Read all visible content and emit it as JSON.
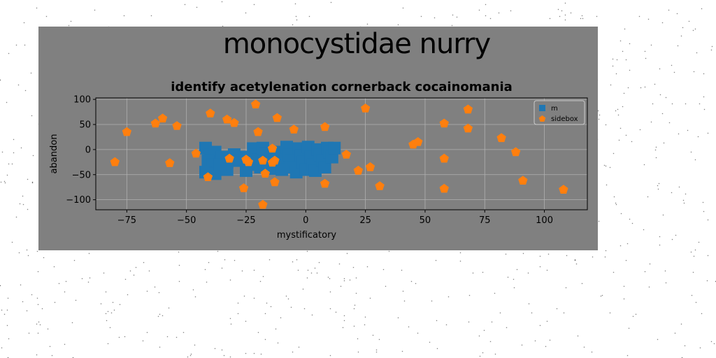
{
  "figure_title": "monocystidae nurry",
  "colors": {
    "figure_bg": "#808080",
    "page_bg": "#ffffff",
    "series_m": "#1f77b4",
    "series_sidebox": "#ff7f0e"
  },
  "chart_data": {
    "type": "scatter",
    "title": "identify acetylenation cornerback cocainomania",
    "xlabel": "mystificatory",
    "ylabel": "abandon",
    "xlim": [
      -88,
      118
    ],
    "ylim": [
      -120,
      103
    ],
    "xticks": [
      -75,
      -50,
      -25,
      0,
      25,
      50,
      75,
      100
    ],
    "yticks": [
      -100,
      -50,
      0,
      50,
      100
    ],
    "grid": true,
    "legend": "top-right",
    "series": [
      {
        "name": "m",
        "marker": "square",
        "color": "#1f77b4",
        "points": [
          [
            -42,
            3
          ],
          [
            -40,
            -10
          ],
          [
            -38,
            -5
          ],
          [
            -41,
            -22
          ],
          [
            -39,
            -30
          ],
          [
            -42,
            -45
          ],
          [
            -38,
            -48
          ],
          [
            -35,
            -15
          ],
          [
            -33,
            -25
          ],
          [
            -33,
            -40
          ],
          [
            -25,
            -15
          ],
          [
            -24,
            -30
          ],
          [
            -25,
            -42
          ],
          [
            -22,
            2
          ],
          [
            -21,
            -10
          ],
          [
            -20,
            -20
          ],
          [
            -19,
            -35
          ],
          [
            -18,
            3
          ],
          [
            -17,
            -8
          ],
          [
            -16,
            -25
          ],
          [
            -15,
            -38
          ],
          [
            -13,
            -5
          ],
          [
            -12,
            -15
          ],
          [
            -11,
            -28
          ],
          [
            -10,
            -40
          ],
          [
            -8,
            5
          ],
          [
            -7,
            -10
          ],
          [
            -6,
            -22
          ],
          [
            -6,
            -35
          ],
          [
            -4,
            -45
          ],
          [
            -3,
            2
          ],
          [
            -2,
            -12
          ],
          [
            -1,
            -25
          ],
          [
            0,
            -40
          ],
          [
            1,
            5
          ],
          [
            2,
            -15
          ],
          [
            3,
            -30
          ],
          [
            4,
            -42
          ],
          [
            5,
            0
          ],
          [
            6,
            -10
          ],
          [
            7,
            -22
          ],
          [
            8,
            -35
          ],
          [
            9,
            3
          ],
          [
            10,
            -5
          ],
          [
            11,
            -15
          ],
          [
            12,
            3
          ],
          [
            -30,
            -10
          ],
          [
            -28,
            -22
          ],
          [
            -36,
            -30
          ]
        ]
      },
      {
        "name": "sidebox",
        "marker": "pentagon",
        "color": "#ff7f0e",
        "points": [
          [
            -80,
            -25
          ],
          [
            -75,
            35
          ],
          [
            -63,
            52
          ],
          [
            -60,
            62
          ],
          [
            -57,
            -27
          ],
          [
            -54,
            47
          ],
          [
            -46,
            -8
          ],
          [
            -41,
            -55
          ],
          [
            -40,
            72
          ],
          [
            -33,
            60
          ],
          [
            -32,
            -18
          ],
          [
            -30,
            53
          ],
          [
            -26,
            -77
          ],
          [
            -25,
            -20
          ],
          [
            -24,
            -25
          ],
          [
            -21,
            90
          ],
          [
            -20,
            35
          ],
          [
            -18,
            -22
          ],
          [
            -18,
            -110
          ],
          [
            -17,
            -48
          ],
          [
            -14,
            -26
          ],
          [
            -14,
            2
          ],
          [
            -13,
            -22
          ],
          [
            -13,
            -65
          ],
          [
            -12,
            63
          ],
          [
            -5,
            40
          ],
          [
            8,
            -68
          ],
          [
            8,
            45
          ],
          [
            17,
            -10
          ],
          [
            22,
            -42
          ],
          [
            25,
            82
          ],
          [
            27,
            -35
          ],
          [
            31,
            -73
          ],
          [
            45,
            10
          ],
          [
            47,
            15
          ],
          [
            58,
            52
          ],
          [
            58,
            -18
          ],
          [
            58,
            -78
          ],
          [
            68,
            80
          ],
          [
            68,
            42
          ],
          [
            82,
            23
          ],
          [
            88,
            -5
          ],
          [
            91,
            -62
          ],
          [
            108,
            -80
          ]
        ]
      }
    ]
  }
}
